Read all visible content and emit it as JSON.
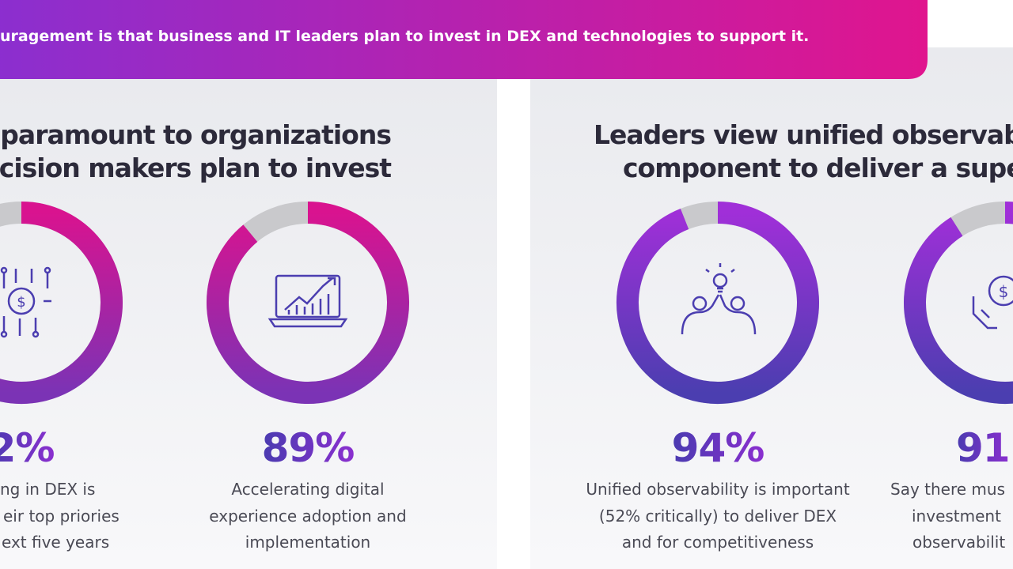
{
  "banner": {
    "text": "uragement is that business and IT leaders plan to invest in DEX and technologies to support it."
  },
  "panels": [
    {
      "heading": [
        "is paramount to organizations",
        "decision makers plan to invest"
      ],
      "stats": [
        {
          "percent": "2%",
          "share": 92,
          "description": [
            "ng in DEX is",
            "eir top priories",
            "ext five years"
          ]
        },
        {
          "percent": "89%",
          "share": 89,
          "description": [
            "Accelerating digital",
            "experience adoption and",
            "implementation"
          ]
        }
      ]
    },
    {
      "heading": [
        "Leaders view unified observabili",
        "component to deliver a superi"
      ],
      "stats": [
        {
          "percent": "94%",
          "share": 94,
          "description": [
            "Unified observability is important",
            "(52% critically) to deliver DEX",
            "and  for competitiveness"
          ]
        },
        {
          "percent": "91",
          "share": 91,
          "description": [
            "Say there mus",
            "investment",
            "observabilit"
          ]
        }
      ]
    }
  ]
}
